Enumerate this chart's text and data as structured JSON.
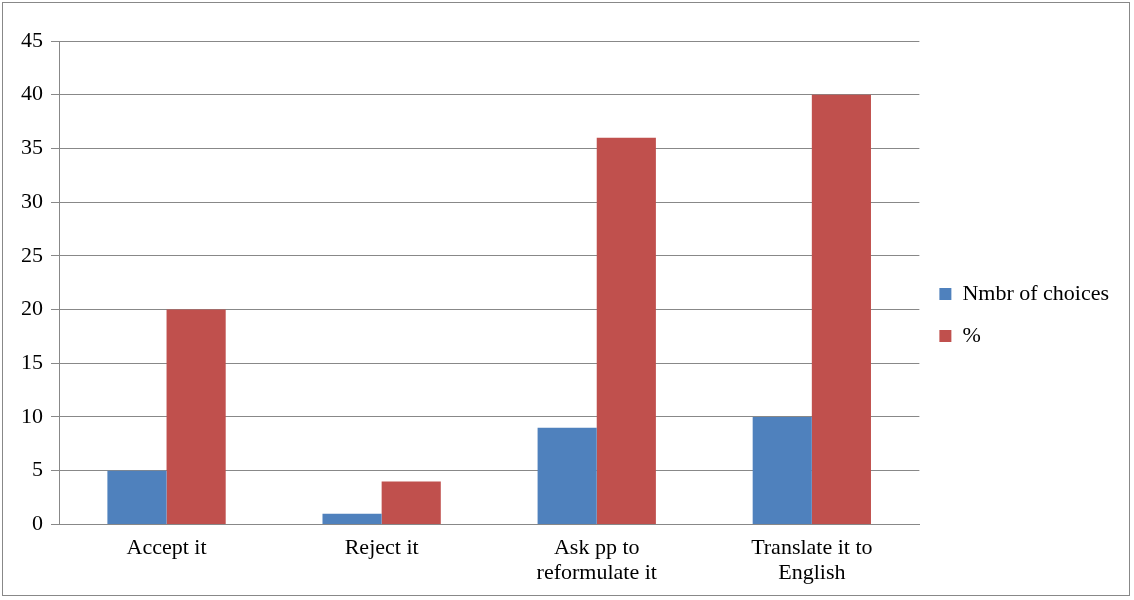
{
  "chart_data": {
    "type": "bar",
    "categories": [
      "Accept it",
      "Reject it",
      "Ask pp to reformulate it",
      "Translate it to English"
    ],
    "series": [
      {
        "name": "Nmbr of choices",
        "color": "#4f81bd",
        "values": [
          5,
          1,
          9,
          10
        ]
      },
      {
        "name": "%",
        "color": "#c0504d",
        "values": [
          20,
          4,
          36,
          40
        ]
      }
    ],
    "ylim": [
      0,
      45
    ],
    "yticks": [
      0,
      5,
      10,
      15,
      20,
      25,
      30,
      35,
      40,
      45
    ],
    "grid": "y",
    "legend": "right"
  }
}
